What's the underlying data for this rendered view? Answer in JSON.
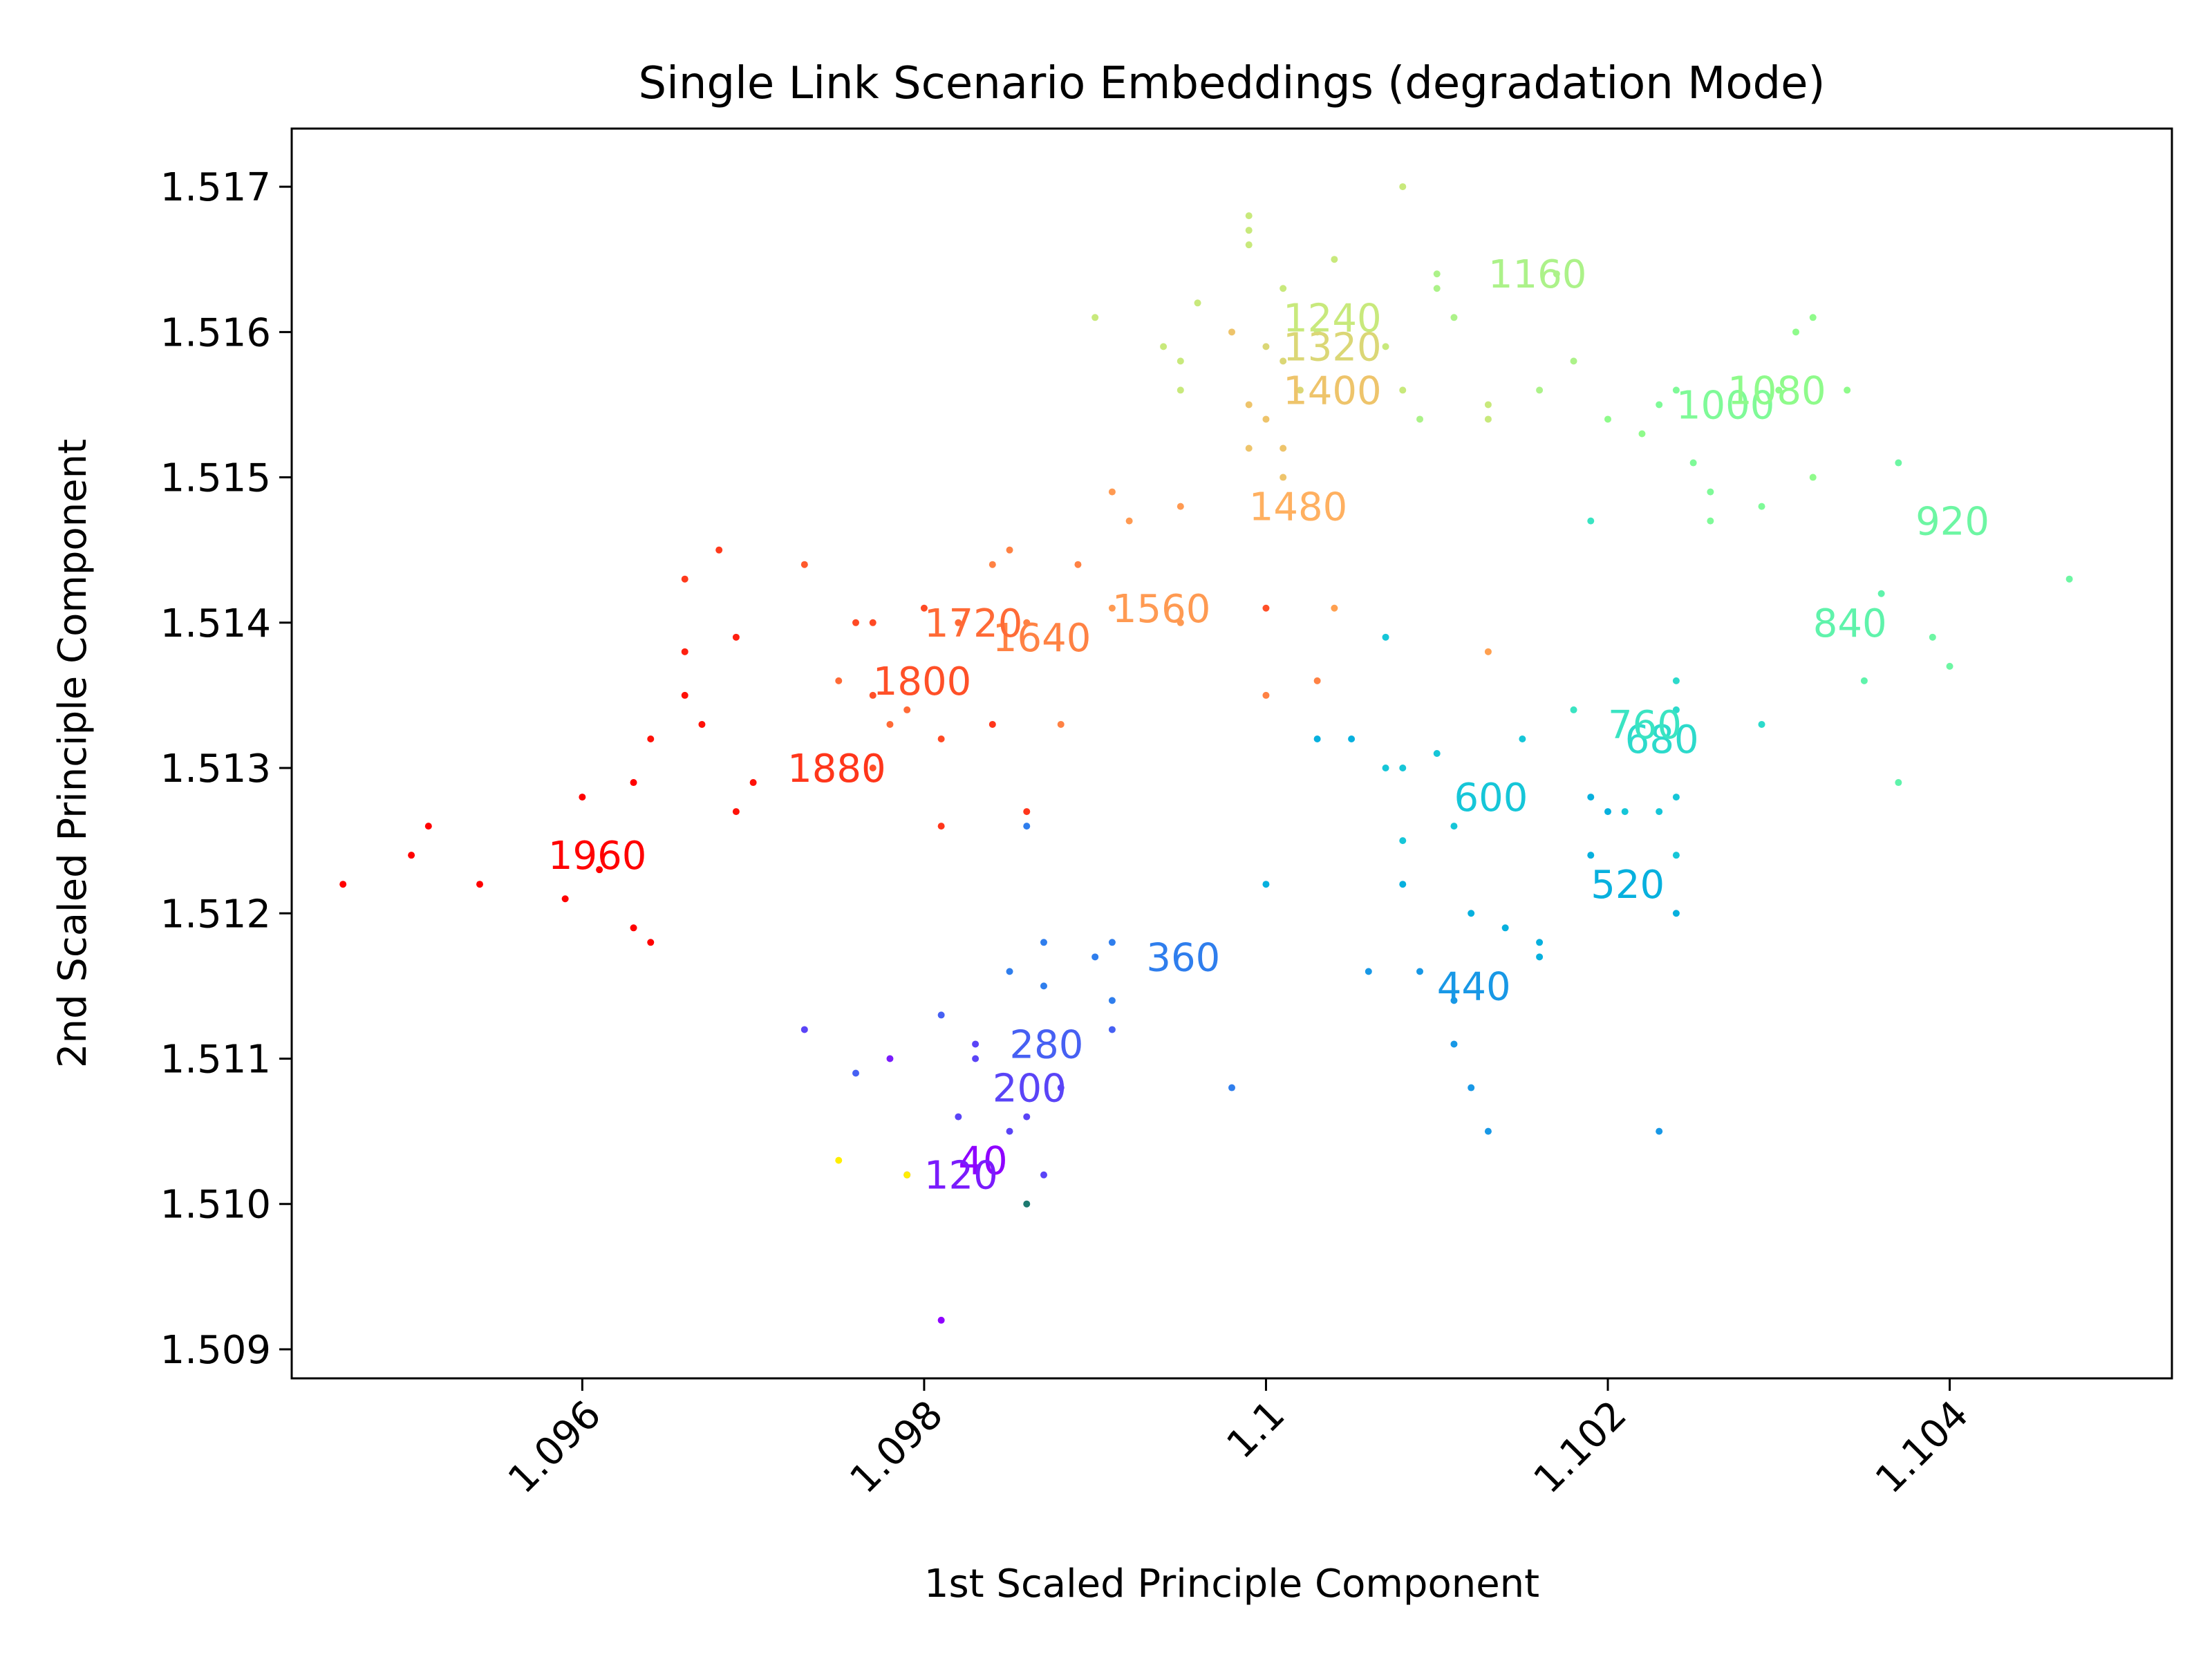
{
  "chart_data": {
    "type": "scatter",
    "title": "Single Link Scenario Embeddings (degradation Mode)",
    "xlabel": "1st Scaled Principle Component",
    "ylabel": "2nd Scaled Principle Component",
    "xlim": [
      1.0943,
      1.1053
    ],
    "ylim": [
      1.5088,
      1.5174
    ],
    "xticks": [
      1.096,
      1.098,
      1.1,
      1.102,
      1.104
    ],
    "xtick_labels": [
      "1.096",
      "1.098",
      "1.1",
      "1.102",
      "1.104"
    ],
    "yticks": [
      1.509,
      1.51,
      1.511,
      1.512,
      1.513,
      1.514,
      1.515,
      1.516,
      1.517
    ],
    "ytick_labels": [
      "1.509",
      "1.510",
      "1.511",
      "1.512",
      "1.513",
      "1.514",
      "1.515",
      "1.516",
      "1.517"
    ],
    "grid": false,
    "legend": "none",
    "annotations": [
      {
        "text": "40",
        "x": 1.0982,
        "y": 1.5103,
        "color": "#8f00ff"
      },
      {
        "text": "120",
        "x": 1.098,
        "y": 1.5102,
        "color": "#7a1cfc"
      },
      {
        "text": "200",
        "x": 1.0984,
        "y": 1.5108,
        "color": "#5a44f7"
      },
      {
        "text": "280",
        "x": 1.0985,
        "y": 1.5111,
        "color": "#4660f3"
      },
      {
        "text": "360",
        "x": 1.0993,
        "y": 1.5117,
        "color": "#2f7eed"
      },
      {
        "text": "440",
        "x": 1.101,
        "y": 1.5115,
        "color": "#1898e6"
      },
      {
        "text": "520",
        "x": 1.1019,
        "y": 1.5122,
        "color": "#07b0de"
      },
      {
        "text": "600",
        "x": 1.1011,
        "y": 1.5128,
        "color": "#16c6d8"
      },
      {
        "text": "680",
        "x": 1.1021,
        "y": 1.5132,
        "color": "#2cdacb"
      },
      {
        "text": "760",
        "x": 1.102,
        "y": 1.5133,
        "color": "#3ae4c2"
      },
      {
        "text": "840",
        "x": 1.1032,
        "y": 1.514,
        "color": "#5ff3ab"
      },
      {
        "text": "920",
        "x": 1.1038,
        "y": 1.5147,
        "color": "#6df6a3"
      },
      {
        "text": "1000",
        "x": 1.1024,
        "y": 1.5155,
        "color": "#7ffa98"
      },
      {
        "text": "1080",
        "x": 1.1027,
        "y": 1.5156,
        "color": "#8ffb8b"
      },
      {
        "text": "1160",
        "x": 1.1013,
        "y": 1.5164,
        "color": "#acf289"
      },
      {
        "text": "1240",
        "x": 1.1001,
        "y": 1.5161,
        "color": "#c8e97c"
      },
      {
        "text": "1320",
        "x": 1.1001,
        "y": 1.5159,
        "color": "#dbd776"
      },
      {
        "text": "1400",
        "x": 1.1001,
        "y": 1.5156,
        "color": "#eec46b"
      },
      {
        "text": "1480",
        "x": 1.0999,
        "y": 1.5148,
        "color": "#ffb060"
      },
      {
        "text": "1560",
        "x": 1.0991,
        "y": 1.5141,
        "color": "#ff9a52"
      },
      {
        "text": "1640",
        "x": 1.0984,
        "y": 1.5139,
        "color": "#ff8244"
      },
      {
        "text": "1720",
        "x": 1.098,
        "y": 1.514,
        "color": "#ff6a36"
      },
      {
        "text": "1800",
        "x": 1.0977,
        "y": 1.5136,
        "color": "#ff5028"
      },
      {
        "text": "1880",
        "x": 1.0972,
        "y": 1.513,
        "color": "#ff361b"
      },
      {
        "text": "1960",
        "x": 1.0958,
        "y": 1.5124,
        "color": "#ff0000"
      }
    ],
    "points": [
      {
        "x": 1.0946,
        "y": 1.5122,
        "color": "#ff0000"
      },
      {
        "x": 1.095,
        "y": 1.5124,
        "color": "#ff0000"
      },
      {
        "x": 1.0951,
        "y": 1.5126,
        "color": "#ff0000"
      },
      {
        "x": 1.0954,
        "y": 1.5122,
        "color": "#ff0000"
      },
      {
        "x": 1.0959,
        "y": 1.5121,
        "color": "#ff0000"
      },
      {
        "x": 1.0961,
        "y": 1.5123,
        "color": "#ff0000"
      },
      {
        "x": 1.096,
        "y": 1.5128,
        "color": "#ff0000"
      },
      {
        "x": 1.0963,
        "y": 1.5119,
        "color": "#ff0000"
      },
      {
        "x": 1.0964,
        "y": 1.5118,
        "color": "#ff0000"
      },
      {
        "x": 1.0963,
        "y": 1.5129,
        "color": "#ff0000"
      },
      {
        "x": 1.0964,
        "y": 1.5132,
        "color": "#ff1108"
      },
      {
        "x": 1.0966,
        "y": 1.5135,
        "color": "#ff1108"
      },
      {
        "x": 1.0967,
        "y": 1.5133,
        "color": "#ff1108"
      },
      {
        "x": 1.0969,
        "y": 1.5127,
        "color": "#ff1108"
      },
      {
        "x": 1.097,
        "y": 1.5129,
        "color": "#ff1108"
      },
      {
        "x": 1.0966,
        "y": 1.5138,
        "color": "#ff2010"
      },
      {
        "x": 1.0969,
        "y": 1.5139,
        "color": "#ff2010"
      },
      {
        "x": 1.0966,
        "y": 1.5143,
        "color": "#ff3a1c"
      },
      {
        "x": 1.0968,
        "y": 1.5145,
        "color": "#ff3a1c"
      },
      {
        "x": 1.0973,
        "y": 1.5144,
        "color": "#ff5a2c"
      },
      {
        "x": 1.0975,
        "y": 1.5136,
        "color": "#ff6a36"
      },
      {
        "x": 1.0976,
        "y": 1.514,
        "color": "#ff4a24"
      },
      {
        "x": 1.0977,
        "y": 1.514,
        "color": "#ff4a24"
      },
      {
        "x": 1.0977,
        "y": 1.5135,
        "color": "#ff5028"
      },
      {
        "x": 1.0977,
        "y": 1.513,
        "color": "#ff5028"
      },
      {
        "x": 1.0978,
        "y": 1.5133,
        "color": "#ff6a36"
      },
      {
        "x": 1.0979,
        "y": 1.5134,
        "color": "#ff6a36"
      },
      {
        "x": 1.098,
        "y": 1.5141,
        "color": "#ff4a24"
      },
      {
        "x": 1.0981,
        "y": 1.5132,
        "color": "#ff4a24"
      },
      {
        "x": 1.0981,
        "y": 1.5126,
        "color": "#ff361b"
      },
      {
        "x": 1.0982,
        "y": 1.514,
        "color": "#ff6a36"
      },
      {
        "x": 1.0984,
        "y": 1.5133,
        "color": "#ff361b"
      },
      {
        "x": 1.0984,
        "y": 1.5144,
        "color": "#ff8244"
      },
      {
        "x": 1.0985,
        "y": 1.5145,
        "color": "#ff8244"
      },
      {
        "x": 1.0986,
        "y": 1.514,
        "color": "#ff8244"
      },
      {
        "x": 1.0986,
        "y": 1.5127,
        "color": "#ff361b"
      },
      {
        "x": 1.0988,
        "y": 1.5133,
        "color": "#ff8244"
      },
      {
        "x": 1.0989,
        "y": 1.5144,
        "color": "#ff8244"
      },
      {
        "x": 1.0991,
        "y": 1.5149,
        "color": "#ff9a52"
      },
      {
        "x": 1.0992,
        "y": 1.5147,
        "color": "#ff9a52"
      },
      {
        "x": 1.0991,
        "y": 1.5141,
        "color": "#ff9a52"
      },
      {
        "x": 1.0995,
        "y": 1.5148,
        "color": "#ff9a52"
      },
      {
        "x": 1.0995,
        "y": 1.514,
        "color": "#ff9a52"
      },
      {
        "x": 1.1,
        "y": 1.5141,
        "color": "#ff5028"
      },
      {
        "x": 1.1,
        "y": 1.5135,
        "color": "#ff8244"
      },
      {
        "x": 1.1003,
        "y": 1.5136,
        "color": "#ff8244"
      },
      {
        "x": 1.1004,
        "y": 1.5141,
        "color": "#ffa050"
      },
      {
        "x": 1.1013,
        "y": 1.5138,
        "color": "#ffa050"
      },
      {
        "x": 1.0999,
        "y": 1.5152,
        "color": "#eec46b"
      },
      {
        "x": 1.1001,
        "y": 1.515,
        "color": "#eec46b"
      },
      {
        "x": 1.1001,
        "y": 1.5152,
        "color": "#eec46b"
      },
      {
        "x": 1.0999,
        "y": 1.5155,
        "color": "#eec46b"
      },
      {
        "x": 1.0998,
        "y": 1.516,
        "color": "#eec46b"
      },
      {
        "x": 1.1,
        "y": 1.5154,
        "color": "#eec46b"
      },
      {
        "x": 1.1001,
        "y": 1.5158,
        "color": "#dbd776"
      },
      {
        "x": 1.1002,
        "y": 1.5156,
        "color": "#dbd776"
      },
      {
        "x": 1.1,
        "y": 1.5159,
        "color": "#dbd776"
      },
      {
        "x": 1.1001,
        "y": 1.5163,
        "color": "#c8e97c"
      },
      {
        "x": 1.1003,
        "y": 1.516,
        "color": "#c8e97c"
      },
      {
        "x": 1.1004,
        "y": 1.5165,
        "color": "#c8e97c"
      },
      {
        "x": 1.1007,
        "y": 1.5159,
        "color": "#c8e97c"
      },
      {
        "x": 1.1008,
        "y": 1.5156,
        "color": "#c8e97c"
      },
      {
        "x": 1.1009,
        "y": 1.5154,
        "color": "#acf289"
      },
      {
        "x": 1.0999,
        "y": 1.5166,
        "color": "#c8e97c"
      },
      {
        "x": 1.0999,
        "y": 1.5167,
        "color": "#c8e97c"
      },
      {
        "x": 1.0999,
        "y": 1.5168,
        "color": "#c8e97c"
      },
      {
        "x": 1.099,
        "y": 1.5161,
        "color": "#c8e97c"
      },
      {
        "x": 1.0994,
        "y": 1.5159,
        "color": "#c8e97c"
      },
      {
        "x": 1.0995,
        "y": 1.5158,
        "color": "#c8e97c"
      },
      {
        "x": 1.0995,
        "y": 1.5156,
        "color": "#c8e97c"
      },
      {
        "x": 1.0996,
        "y": 1.5162,
        "color": "#c8e97c"
      },
      {
        "x": 1.1008,
        "y": 1.517,
        "color": "#c8e97c"
      },
      {
        "x": 1.101,
        "y": 1.5164,
        "color": "#acf289"
      },
      {
        "x": 1.101,
        "y": 1.5163,
        "color": "#acf289"
      },
      {
        "x": 1.1011,
        "y": 1.5161,
        "color": "#acf289"
      },
      {
        "x": 1.1013,
        "y": 1.5155,
        "color": "#c8e97c"
      },
      {
        "x": 1.1013,
        "y": 1.5154,
        "color": "#c8e97c"
      },
      {
        "x": 1.1016,
        "y": 1.5156,
        "color": "#acf289"
      },
      {
        "x": 1.1017,
        "y": 1.5164,
        "color": "#acf289"
      },
      {
        "x": 1.1018,
        "y": 1.5158,
        "color": "#acf289"
      },
      {
        "x": 1.102,
        "y": 1.5154,
        "color": "#8ffb8b"
      },
      {
        "x": 1.1022,
        "y": 1.5153,
        "color": "#8ffb8b"
      },
      {
        "x": 1.1023,
        "y": 1.5155,
        "color": "#7ffa98"
      },
      {
        "x": 1.1024,
        "y": 1.5156,
        "color": "#7ffa98"
      },
      {
        "x": 1.1025,
        "y": 1.5151,
        "color": "#7ffa98"
      },
      {
        "x": 1.1026,
        "y": 1.5149,
        "color": "#7ffa98"
      },
      {
        "x": 1.1026,
        "y": 1.5147,
        "color": "#7ffa98"
      },
      {
        "x": 1.1029,
        "y": 1.5148,
        "color": "#7ffa98"
      },
      {
        "x": 1.103,
        "y": 1.5156,
        "color": "#8ffb8b"
      },
      {
        "x": 1.1031,
        "y": 1.516,
        "color": "#8ffb8b"
      },
      {
        "x": 1.1032,
        "y": 1.5161,
        "color": "#8ffb8b"
      },
      {
        "x": 1.1032,
        "y": 1.515,
        "color": "#8ffb8b"
      },
      {
        "x": 1.1034,
        "y": 1.5156,
        "color": "#8ffb8b"
      },
      {
        "x": 1.1037,
        "y": 1.5151,
        "color": "#6df6a3"
      },
      {
        "x": 1.1039,
        "y": 1.5139,
        "color": "#6df6a3"
      },
      {
        "x": 1.104,
        "y": 1.5137,
        "color": "#6df6a3"
      },
      {
        "x": 1.1047,
        "y": 1.5143,
        "color": "#6df6a3"
      },
      {
        "x": 1.1036,
        "y": 1.5142,
        "color": "#5ff3ab"
      },
      {
        "x": 1.1035,
        "y": 1.5136,
        "color": "#5ff3ab"
      },
      {
        "x": 1.1037,
        "y": 1.5129,
        "color": "#5ff3ab"
      },
      {
        "x": 1.1019,
        "y": 1.5147,
        "color": "#3ae4c2"
      },
      {
        "x": 1.1018,
        "y": 1.5134,
        "color": "#3ae4c2"
      },
      {
        "x": 1.1024,
        "y": 1.5136,
        "color": "#2cdacb"
      },
      {
        "x": 1.1024,
        "y": 1.5134,
        "color": "#2cdacb"
      },
      {
        "x": 1.1029,
        "y": 1.5133,
        "color": "#2cdacb"
      },
      {
        "x": 1.1015,
        "y": 1.5132,
        "color": "#16c6d8"
      },
      {
        "x": 1.1019,
        "y": 1.5128,
        "color": "#07b0de"
      },
      {
        "x": 1.102,
        "y": 1.5127,
        "color": "#07b0de"
      },
      {
        "x": 1.1021,
        "y": 1.5127,
        "color": "#16c6d8"
      },
      {
        "x": 1.1023,
        "y": 1.5127,
        "color": "#16c6d8"
      },
      {
        "x": 1.1024,
        "y": 1.5128,
        "color": "#16c6d8"
      },
      {
        "x": 1.1024,
        "y": 1.5124,
        "color": "#16c6d8"
      },
      {
        "x": 1.1024,
        "y": 1.512,
        "color": "#07b0de"
      },
      {
        "x": 1.1019,
        "y": 1.5124,
        "color": "#07b0de"
      },
      {
        "x": 1.1007,
        "y": 1.5139,
        "color": "#16c6d8"
      },
      {
        "x": 1.1007,
        "y": 1.513,
        "color": "#16c6d8"
      },
      {
        "x": 1.1008,
        "y": 1.513,
        "color": "#16c6d8"
      },
      {
        "x": 1.101,
        "y": 1.5131,
        "color": "#16c6d8"
      },
      {
        "x": 1.1011,
        "y": 1.5126,
        "color": "#16c6d8"
      },
      {
        "x": 1.1008,
        "y": 1.5125,
        "color": "#16c6d8"
      },
      {
        "x": 1.1008,
        "y": 1.5122,
        "color": "#07b0de"
      },
      {
        "x": 1.1003,
        "y": 1.5132,
        "color": "#07b0de"
      },
      {
        "x": 1.1005,
        "y": 1.5132,
        "color": "#07b0de"
      },
      {
        "x": 1.1,
        "y": 1.5122,
        "color": "#07b0de"
      },
      {
        "x": 1.1012,
        "y": 1.512,
        "color": "#07b0de"
      },
      {
        "x": 1.1014,
        "y": 1.5119,
        "color": "#07b0de"
      },
      {
        "x": 1.1016,
        "y": 1.5118,
        "color": "#07b0de"
      },
      {
        "x": 1.1016,
        "y": 1.5117,
        "color": "#07b0de"
      },
      {
        "x": 1.1006,
        "y": 1.5116,
        "color": "#1898e6"
      },
      {
        "x": 1.1009,
        "y": 1.5116,
        "color": "#1898e6"
      },
      {
        "x": 1.1011,
        "y": 1.5114,
        "color": "#1898e6"
      },
      {
        "x": 1.1011,
        "y": 1.5111,
        "color": "#1898e6"
      },
      {
        "x": 1.1012,
        "y": 1.5108,
        "color": "#1898e6"
      },
      {
        "x": 1.1013,
        "y": 1.5105,
        "color": "#1898e6"
      },
      {
        "x": 1.1023,
        "y": 1.5105,
        "color": "#1898e6"
      },
      {
        "x": 1.0998,
        "y": 1.5108,
        "color": "#2f7eed"
      },
      {
        "x": 1.0991,
        "y": 1.5118,
        "color": "#2f7eed"
      },
      {
        "x": 1.099,
        "y": 1.5117,
        "color": "#2f7eed"
      },
      {
        "x": 1.0991,
        "y": 1.5114,
        "color": "#2f7eed"
      },
      {
        "x": 1.0987,
        "y": 1.5115,
        "color": "#2f7eed"
      },
      {
        "x": 1.0987,
        "y": 1.5118,
        "color": "#2f7eed"
      },
      {
        "x": 1.0985,
        "y": 1.5116,
        "color": "#2f7eed"
      },
      {
        "x": 1.0986,
        "y": 1.5126,
        "color": "#2f7eed"
      },
      {
        "x": 1.0991,
        "y": 1.5112,
        "color": "#4660f3"
      },
      {
        "x": 1.0981,
        "y": 1.5113,
        "color": "#4660f3"
      },
      {
        "x": 1.0976,
        "y": 1.5109,
        "color": "#4660f3"
      },
      {
        "x": 1.0973,
        "y": 1.5112,
        "color": "#5a44f7"
      },
      {
        "x": 1.0978,
        "y": 1.511,
        "color": "#7a1cfc"
      },
      {
        "x": 1.0983,
        "y": 1.5111,
        "color": "#5a44f7"
      },
      {
        "x": 1.0983,
        "y": 1.511,
        "color": "#5a44f7"
      },
      {
        "x": 1.0985,
        "y": 1.5105,
        "color": "#5a44f7"
      },
      {
        "x": 1.0982,
        "y": 1.5106,
        "color": "#5a44f7"
      },
      {
        "x": 1.0986,
        "y": 1.5106,
        "color": "#5a44f7"
      },
      {
        "x": 1.0988,
        "y": 1.5108,
        "color": "#5a44f7"
      },
      {
        "x": 1.0987,
        "y": 1.5102,
        "color": "#5a44f7"
      },
      {
        "x": 1.0979,
        "y": 1.5102,
        "color": "#7a1cfc"
      },
      {
        "x": 1.0981,
        "y": 1.5092,
        "color": "#8f00ff"
      },
      {
        "x": 1.0975,
        "y": 1.5103,
        "color": "#ffee00"
      },
      {
        "x": 1.0979,
        "y": 1.5102,
        "color": "#ffee00"
      },
      {
        "x": 1.0986,
        "y": 1.51,
        "color": "#1d7a70"
      }
    ]
  }
}
